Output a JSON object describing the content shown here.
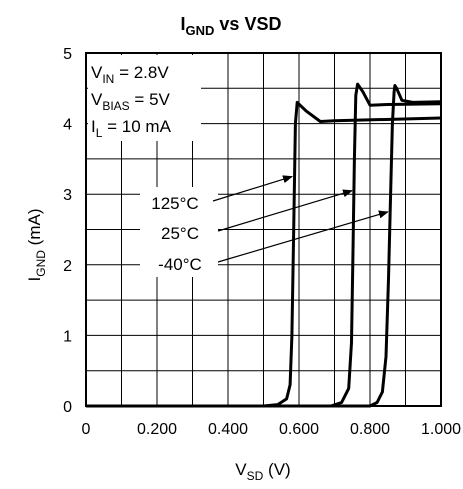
{
  "chart_data": {
    "type": "line",
    "title": {
      "main": "I",
      "sub": "GND",
      "rest": " vs VSD"
    },
    "xlabel": {
      "main": "V",
      "sub": "SD",
      "rest": " (V)"
    },
    "ylabel": {
      "main": "I",
      "sub": "GND",
      "rest": " (mA)"
    },
    "xlim": [
      0,
      1.0
    ],
    "ylim": [
      0,
      5
    ],
    "x_ticks": [
      {
        "value": 0,
        "label": "0"
      },
      {
        "value": 0.2,
        "label": "0.200"
      },
      {
        "value": 0.4,
        "label": "0.400"
      },
      {
        "value": 0.6,
        "label": "0.600"
      },
      {
        "value": 0.8,
        "label": "0.800"
      },
      {
        "value": 1.0,
        "label": "1.000"
      }
    ],
    "y_ticks": [
      {
        "value": 0,
        "label": "0"
      },
      {
        "value": 1,
        "label": "1"
      },
      {
        "value": 2,
        "label": "2"
      },
      {
        "value": 3,
        "label": "3"
      },
      {
        "value": 4,
        "label": "4"
      },
      {
        "value": 5,
        "label": "5"
      }
    ],
    "grid": true,
    "conditions": [
      {
        "main": "V",
        "sub": "IN",
        "rest": " = 2.8V"
      },
      {
        "main": "V",
        "sub": "BIAS",
        "rest": " = 5V"
      },
      {
        "main": "I",
        "sub": "L",
        "rest": " = 10 mA"
      }
    ],
    "series": [
      {
        "name": "125°C",
        "x": [
          0,
          0.5,
          0.54,
          0.565,
          0.575,
          0.58,
          0.585,
          0.59,
          0.595,
          0.62,
          0.66,
          0.7,
          1.0
        ],
        "y": [
          0,
          0,
          0.02,
          0.1,
          0.3,
          1.0,
          2.5,
          4.0,
          4.3,
          4.18,
          4.03,
          4.04,
          4.08
        ]
      },
      {
        "name": "25°C",
        "x": [
          0,
          0.69,
          0.72,
          0.74,
          0.748,
          0.752,
          0.756,
          0.76,
          0.765,
          0.78,
          0.8,
          0.85,
          1.0
        ],
        "y": [
          0,
          0,
          0.05,
          0.25,
          0.9,
          2.2,
          3.5,
          4.4,
          4.56,
          4.45,
          4.26,
          4.27,
          4.28
        ]
      },
      {
        "name": "-40°C",
        "x": [
          0,
          0.8,
          0.82,
          0.835,
          0.845,
          0.852,
          0.858,
          0.863,
          0.868,
          0.87,
          0.875,
          0.89,
          0.92,
          1.0
        ],
        "y": [
          0,
          0,
          0.05,
          0.2,
          0.7,
          1.8,
          3.0,
          4.0,
          4.45,
          4.54,
          4.5,
          4.33,
          4.3,
          4.31
        ]
      }
    ],
    "annotations": [
      {
        "text": "125°C",
        "target_x": 0.586,
        "target_y": 3.25
      },
      {
        "text": "25°C",
        "target_x": 0.755,
        "target_y": 3.05
      },
      {
        "text": "-40°C",
        "target_x": 0.856,
        "target_y": 2.75
      }
    ]
  }
}
